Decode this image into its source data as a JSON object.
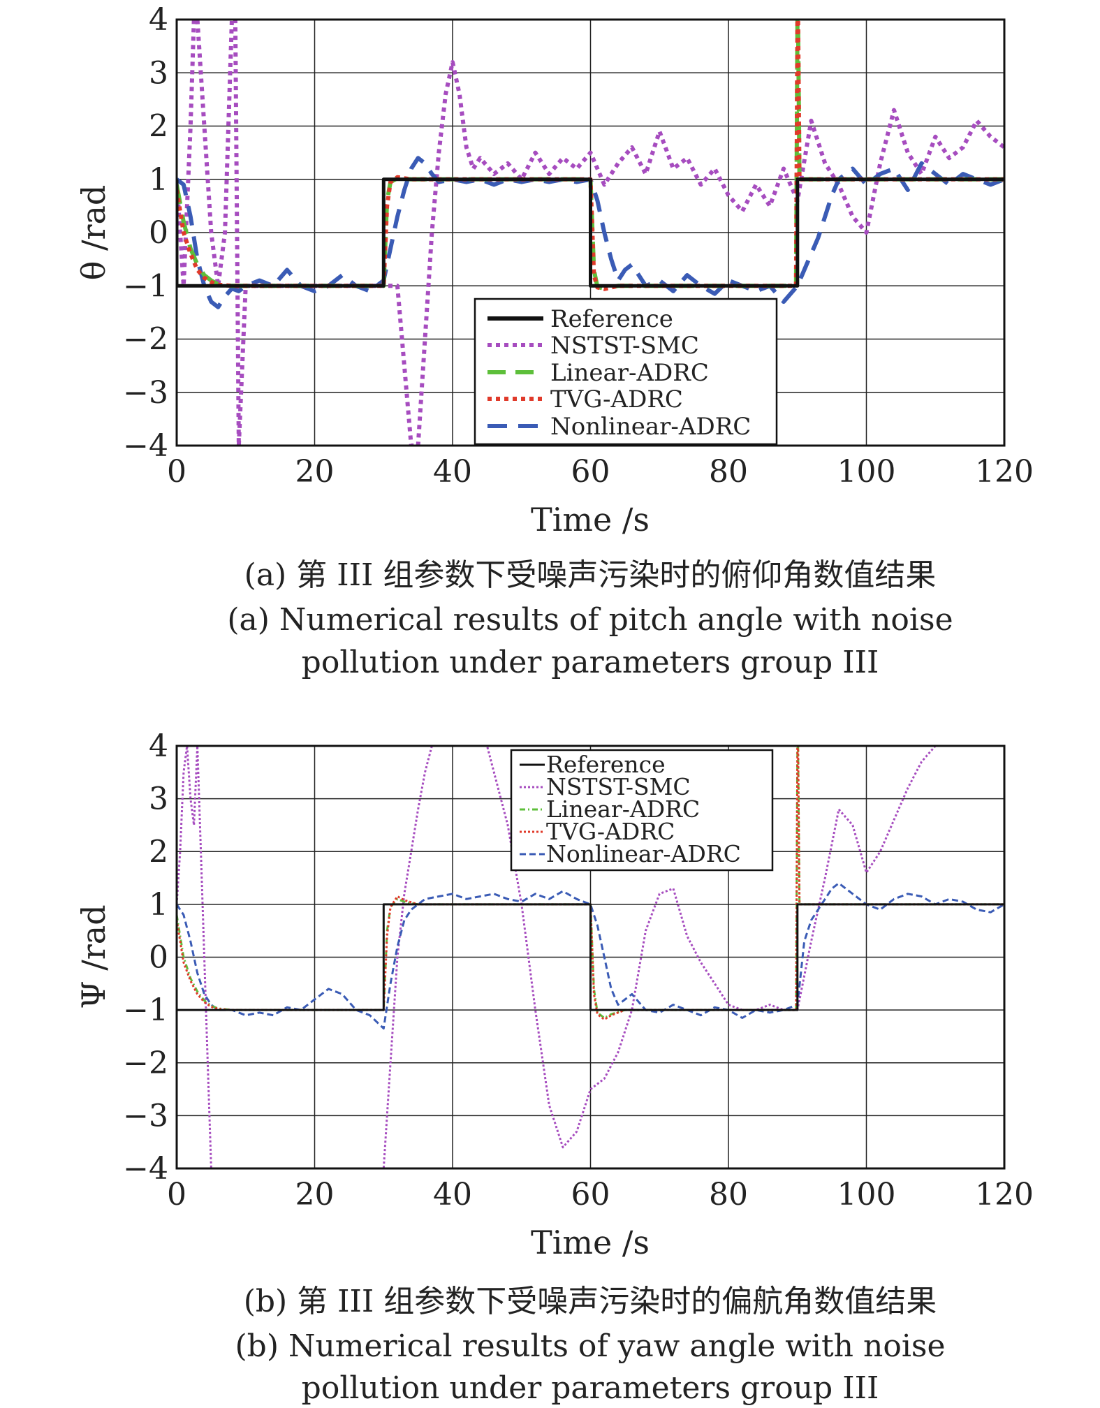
{
  "chart_data": [
    {
      "type": "line",
      "panel": "a",
      "xlabel": "Time /s",
      "ylabel": "θ /rad",
      "xlim": [
        0,
        120
      ],
      "ylim": [
        -4,
        4
      ],
      "xticks": [
        "0",
        "20",
        "40",
        "60",
        "80",
        "100",
        "120"
      ],
      "yticks": [
        "4",
        "3",
        "2",
        "1",
        "0",
        "−1",
        "−2",
        "−3",
        "−4"
      ],
      "grid": true,
      "legend_position": "bottom-right",
      "series": [
        {
          "name": "Reference",
          "color": "#111111",
          "style": "solid",
          "x": [
            0,
            0,
            30,
            30,
            60,
            60,
            90,
            90,
            120
          ],
          "y": [
            1,
            -1,
            -1,
            1,
            1,
            -1,
            -1,
            1,
            1
          ]
        },
        {
          "name": "NSTST-SMC",
          "color": "#a64cbf",
          "style": "dotted",
          "x": [
            0,
            1,
            2,
            2.5,
            3,
            4,
            5,
            6,
            7,
            8,
            8.5,
            9,
            10,
            12,
            14,
            16,
            18,
            20,
            22,
            24,
            26,
            28,
            30,
            32,
            34,
            35,
            36,
            37,
            38,
            39,
            40,
            41,
            42,
            43,
            44,
            46,
            48,
            50,
            52,
            54,
            56,
            58,
            60,
            62,
            64,
            66,
            68,
            70,
            72,
            74,
            76,
            78,
            80,
            82,
            84,
            86,
            88,
            90,
            92,
            94,
            96,
            98,
            100,
            102,
            104,
            106,
            108,
            110,
            112,
            114,
            116,
            118,
            120
          ],
          "y": [
            1,
            -1,
            2,
            4,
            4,
            2,
            0,
            -1,
            0,
            4,
            4,
            -4,
            -1,
            -1,
            -1,
            -1,
            -1,
            -1,
            -1,
            -1,
            -1,
            -1,
            -1,
            -1,
            -4,
            -4,
            -2,
            0,
            1.5,
            2.6,
            3.2,
            2.6,
            1.6,
            1.2,
            1.4,
            1.1,
            1.3,
            1.0,
            1.5,
            1.1,
            1.4,
            1.2,
            1.5,
            0.9,
            1.3,
            1.6,
            1.1,
            1.9,
            1.2,
            1.4,
            0.9,
            1.2,
            0.7,
            0.4,
            0.9,
            0.5,
            1.2,
            0.6,
            2.1,
            1.3,
            0.9,
            0.3,
            0.0,
            1.3,
            2.3,
            1.5,
            1.1,
            1.8,
            1.4,
            1.6,
            2.1,
            1.8,
            1.6
          ]
        },
        {
          "name": "Linear-ADRC",
          "color": "#5dbf3a",
          "style": "dashed",
          "x": [
            0,
            1,
            2,
            3,
            4,
            5,
            6,
            8,
            10,
            30,
            30.5,
            31,
            32,
            34,
            60,
            60.5,
            61,
            62,
            64,
            89.8,
            90,
            90.1,
            90.3,
            91,
            120
          ],
          "y": [
            0.9,
            0.2,
            -0.3,
            -0.6,
            -0.8,
            -0.9,
            -0.97,
            -1,
            -1,
            -1,
            0.6,
            0.95,
            1.02,
            1,
            1,
            -0.7,
            -1.02,
            -1.05,
            -1,
            -1,
            4,
            4,
            1,
            1,
            1
          ]
        },
        {
          "name": "TVG-ADRC",
          "color": "#e03a2a",
          "style": "dotted",
          "x": [
            0,
            1,
            2,
            3,
            4,
            5,
            6,
            8,
            10,
            30,
            30.5,
            31,
            32,
            34,
            60,
            60.5,
            61,
            62,
            64,
            89.8,
            90,
            90.1,
            90.3,
            91,
            120
          ],
          "y": [
            0.8,
            0.0,
            -0.4,
            -0.7,
            -0.85,
            -0.93,
            -0.98,
            -1,
            -1,
            -1,
            0.5,
            0.95,
            1.04,
            1,
            1,
            -0.8,
            -1.03,
            -1.06,
            -1,
            -1,
            4,
            4,
            1,
            1,
            1
          ]
        },
        {
          "name": "Nonlinear-ADRC",
          "color": "#3a5bb5",
          "style": "dashed",
          "x": [
            0,
            1,
            2,
            3,
            4,
            5,
            6,
            7,
            8,
            9,
            10,
            12,
            14,
            16,
            18,
            20,
            22,
            24,
            26,
            28,
            30,
            31,
            32,
            33,
            34,
            35,
            36,
            37,
            38,
            40,
            42,
            44,
            46,
            48,
            50,
            52,
            54,
            56,
            58,
            60,
            61,
            62,
            63,
            64,
            65,
            66,
            68,
            70,
            72,
            74,
            76,
            78,
            80,
            82,
            84,
            86,
            88,
            90,
            91,
            92,
            93,
            94,
            95,
            96,
            98,
            100,
            102,
            104,
            106,
            108,
            110,
            112,
            114,
            116,
            118,
            120
          ],
          "y": [
            1,
            0.9,
            0.3,
            -0.5,
            -1.0,
            -1.3,
            -1.4,
            -1.2,
            -1.05,
            -1.1,
            -1.0,
            -0.9,
            -1.0,
            -0.7,
            -1.0,
            -1.1,
            -1.0,
            -0.8,
            -1.0,
            -1.1,
            -0.9,
            -0.3,
            0.3,
            0.8,
            1.2,
            1.4,
            1.3,
            1.1,
            0.95,
            1.0,
            0.95,
            1.0,
            0.9,
            1.0,
            0.95,
            1.0,
            0.95,
            1.0,
            0.95,
            1.0,
            0.6,
            0.0,
            -0.5,
            -0.9,
            -0.7,
            -0.6,
            -1.0,
            -0.9,
            -1.1,
            -0.8,
            -1.0,
            -1.15,
            -0.9,
            -1.0,
            -1.1,
            -1.0,
            -1.3,
            -1.0,
            -0.7,
            -0.4,
            -0.1,
            0.3,
            0.7,
            1.0,
            1.2,
            0.9,
            1.1,
            1.2,
            0.8,
            1.3,
            1.1,
            0.9,
            1.1,
            1.0,
            0.9,
            1.0
          ]
        }
      ]
    },
    {
      "type": "line",
      "panel": "b",
      "xlabel": "Time /s",
      "ylabel": "Ψ /rad",
      "xlim": [
        0,
        120
      ],
      "ylim": [
        -4,
        4
      ],
      "xticks": [
        "0",
        "20",
        "40",
        "60",
        "80",
        "100",
        "120"
      ],
      "yticks": [
        "4",
        "3",
        "2",
        "1",
        "0",
        "−1",
        "−2",
        "−3",
        "−4"
      ],
      "grid": true,
      "legend_position": "top-right",
      "series": [
        {
          "name": "Reference",
          "color": "#111111",
          "style": "solid",
          "x": [
            0,
            0,
            30,
            30,
            60,
            60,
            90,
            90,
            120
          ],
          "y": [
            1,
            -1,
            -1,
            1,
            1,
            -1,
            -1,
            1,
            1
          ]
        },
        {
          "name": "NSTST-SMC",
          "color": "#a64cbf",
          "style": "dotted",
          "x": [
            0,
            0.5,
            1,
            1.5,
            2,
            2.5,
            3,
            3.5,
            4,
            4.5,
            5,
            30,
            31,
            32,
            33,
            34,
            35,
            36,
            37,
            38,
            39,
            40,
            41,
            42,
            43,
            44,
            45,
            46,
            48,
            50,
            52,
            54,
            56,
            58,
            60,
            61,
            62,
            64,
            66,
            68,
            70,
            72,
            74,
            76,
            78,
            80,
            82,
            84,
            86,
            88,
            90,
            92,
            94,
            96,
            98,
            100,
            102,
            104,
            106,
            108,
            110
          ],
          "y": [
            1,
            2,
            3.5,
            4,
            3,
            2.5,
            4,
            2,
            0,
            -2,
            -4,
            -4,
            -2,
            0,
            1.2,
            2.0,
            2.8,
            3.5,
            4,
            4,
            4,
            4,
            4,
            4,
            4,
            4,
            4,
            3.5,
            2.5,
            1.0,
            -1.0,
            -2.8,
            -3.6,
            -3.3,
            -2.5,
            -2.4,
            -2.3,
            -1.8,
            -1.0,
            0.5,
            1.2,
            1.3,
            0.4,
            -0.1,
            -0.5,
            -0.9,
            -1.0,
            -1.0,
            -0.9,
            -1.0,
            -1.0,
            0.3,
            1.5,
            2.8,
            2.5,
            1.6,
            2.0,
            2.6,
            3.2,
            3.7,
            4
          ]
        },
        {
          "name": "Linear-ADRC",
          "color": "#5dbf3a",
          "style": "dashdot",
          "x": [
            0,
            1,
            2,
            3,
            4,
            5,
            6,
            8,
            10,
            30,
            30.5,
            31,
            32,
            33,
            35,
            60,
            60.5,
            61,
            62,
            63,
            65,
            89.8,
            90,
            90.1,
            90.3,
            91,
            120
          ],
          "y": [
            0.8,
            0.0,
            -0.4,
            -0.65,
            -0.82,
            -0.92,
            -0.97,
            -1,
            -1,
            -1,
            0.5,
            0.95,
            1.1,
            1.05,
            1,
            1,
            -0.6,
            -1.05,
            -1.15,
            -1.08,
            -1,
            -1,
            4,
            4,
            1,
            1,
            1
          ]
        },
        {
          "name": "TVG-ADRC",
          "color": "#e03a2a",
          "style": "dotted",
          "x": [
            0,
            1,
            2,
            3,
            4,
            5,
            6,
            8,
            10,
            30,
            30.5,
            31,
            32,
            33,
            35,
            60,
            60.5,
            61,
            62,
            63,
            65,
            89.8,
            90,
            90.1,
            90.3,
            91,
            120
          ],
          "y": [
            0.7,
            -0.1,
            -0.45,
            -0.7,
            -0.85,
            -0.94,
            -0.98,
            -1,
            -1,
            -1,
            0.4,
            0.95,
            1.15,
            1.08,
            1,
            1,
            -0.7,
            -1.08,
            -1.18,
            -1.1,
            -1,
            -1,
            4,
            4,
            1,
            1,
            1
          ]
        },
        {
          "name": "Nonlinear-ADRC",
          "color": "#3a5bb5",
          "style": "dashed",
          "x": [
            0,
            1,
            2,
            3,
            4,
            5,
            6,
            8,
            10,
            12,
            14,
            16,
            18,
            20,
            22,
            24,
            26,
            28,
            30,
            31,
            32,
            33,
            34,
            35,
            36,
            38,
            40,
            42,
            44,
            46,
            48,
            50,
            52,
            54,
            56,
            58,
            60,
            61,
            62,
            63,
            64,
            65,
            66,
            68,
            70,
            72,
            74,
            76,
            78,
            80,
            82,
            84,
            86,
            88,
            90,
            91,
            92,
            93,
            94,
            95,
            96,
            98,
            100,
            102,
            104,
            106,
            108,
            110,
            112,
            114,
            116,
            118,
            120
          ],
          "y": [
            1,
            0.8,
            0.3,
            -0.3,
            -0.7,
            -0.9,
            -1.0,
            -1.0,
            -1.1,
            -1.05,
            -1.1,
            -0.95,
            -1.0,
            -0.8,
            -0.6,
            -0.7,
            -1.0,
            -1.1,
            -1.35,
            -0.5,
            0.2,
            0.7,
            0.9,
            1.0,
            1.1,
            1.15,
            1.2,
            1.1,
            1.15,
            1.2,
            1.1,
            1.05,
            1.2,
            1.1,
            1.25,
            1.1,
            1.0,
            0.6,
            0.0,
            -0.6,
            -0.9,
            -0.8,
            -0.7,
            -1.0,
            -1.05,
            -0.9,
            -1.0,
            -1.1,
            -0.95,
            -1.0,
            -1.15,
            -1.0,
            -1.05,
            -1.0,
            -0.9,
            0.3,
            0.7,
            0.9,
            1.1,
            1.3,
            1.4,
            1.2,
            1.0,
            0.9,
            1.1,
            1.2,
            1.15,
            1.0,
            1.1,
            1.05,
            0.9,
            0.85,
            1.0
          ]
        }
      ]
    }
  ],
  "captions": {
    "a_cn": "(a) 第 III 组参数下受噪声污染时的俯仰角数值结果",
    "a_en_1": "(a) Numerical results of pitch angle with noise",
    "a_en_2": "pollution under parameters group III",
    "b_cn": "(b) 第 III 组参数下受噪声污染时的偏航角数值结果",
    "b_en_1": "(b) Numerical results of yaw angle with noise",
    "b_en_2": "pollution under parameters group III"
  }
}
